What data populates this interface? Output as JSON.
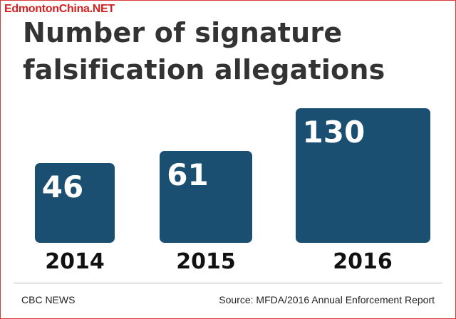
{
  "watermark": "EdmontonChina.NET",
  "chart_data": {
    "type": "bar",
    "title": "Number of signature falsification allegations",
    "categories": [
      "2014",
      "2015",
      "2016"
    ],
    "values": [
      46,
      61,
      130
    ],
    "xlabel": "",
    "ylabel": "",
    "grid": false,
    "colors": {
      "tile": "#1b4f72",
      "value_text": "#ffffff",
      "category_text": "#111111"
    }
  },
  "footer": {
    "credit": "CBC NEWS",
    "source": "Source: MFDA/2016 Annual Enforcement Report"
  }
}
